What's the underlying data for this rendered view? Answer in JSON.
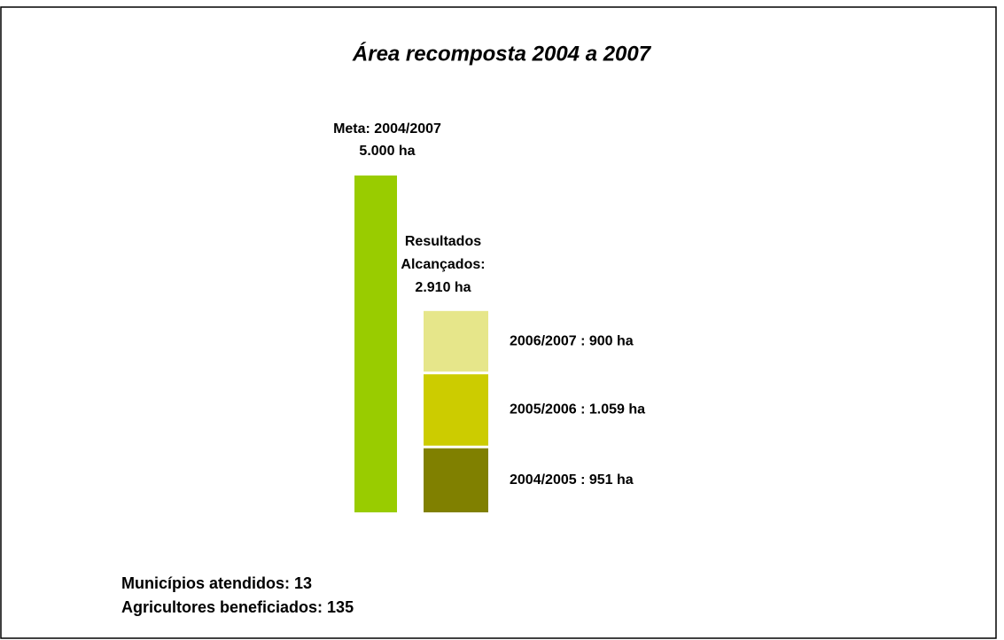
{
  "chart_data": {
    "type": "stacked_bar",
    "title": "Área recomposta 2004 a 2007",
    "target": {
      "label": "Meta: 2004/2007",
      "value": 5000,
      "value_label": "5.000 ha",
      "color": "#99cc00"
    },
    "achieved": {
      "label_lines": [
        "Resultados",
        "Alcançados:"
      ],
      "total_label": "2.910 ha"
    },
    "series": [
      {
        "color": "#808000",
        "values": [
          951
        ],
        "value_labels": [
          "2004/2005 : 951 ha"
        ]
      },
      {
        "color": "#cccc00",
        "values": [
          1059
        ],
        "value_labels": [
          "2005/2006 : 1.059 ha"
        ]
      },
      {
        "color": "#e6e68a",
        "values": [
          900
        ],
        "value_labels": [
          "2006/2007 : 900 ha"
        ]
      }
    ],
    "notes": [
      "Municípios atendidos: 13",
      "Agricultores beneficiados: 135"
    ]
  }
}
